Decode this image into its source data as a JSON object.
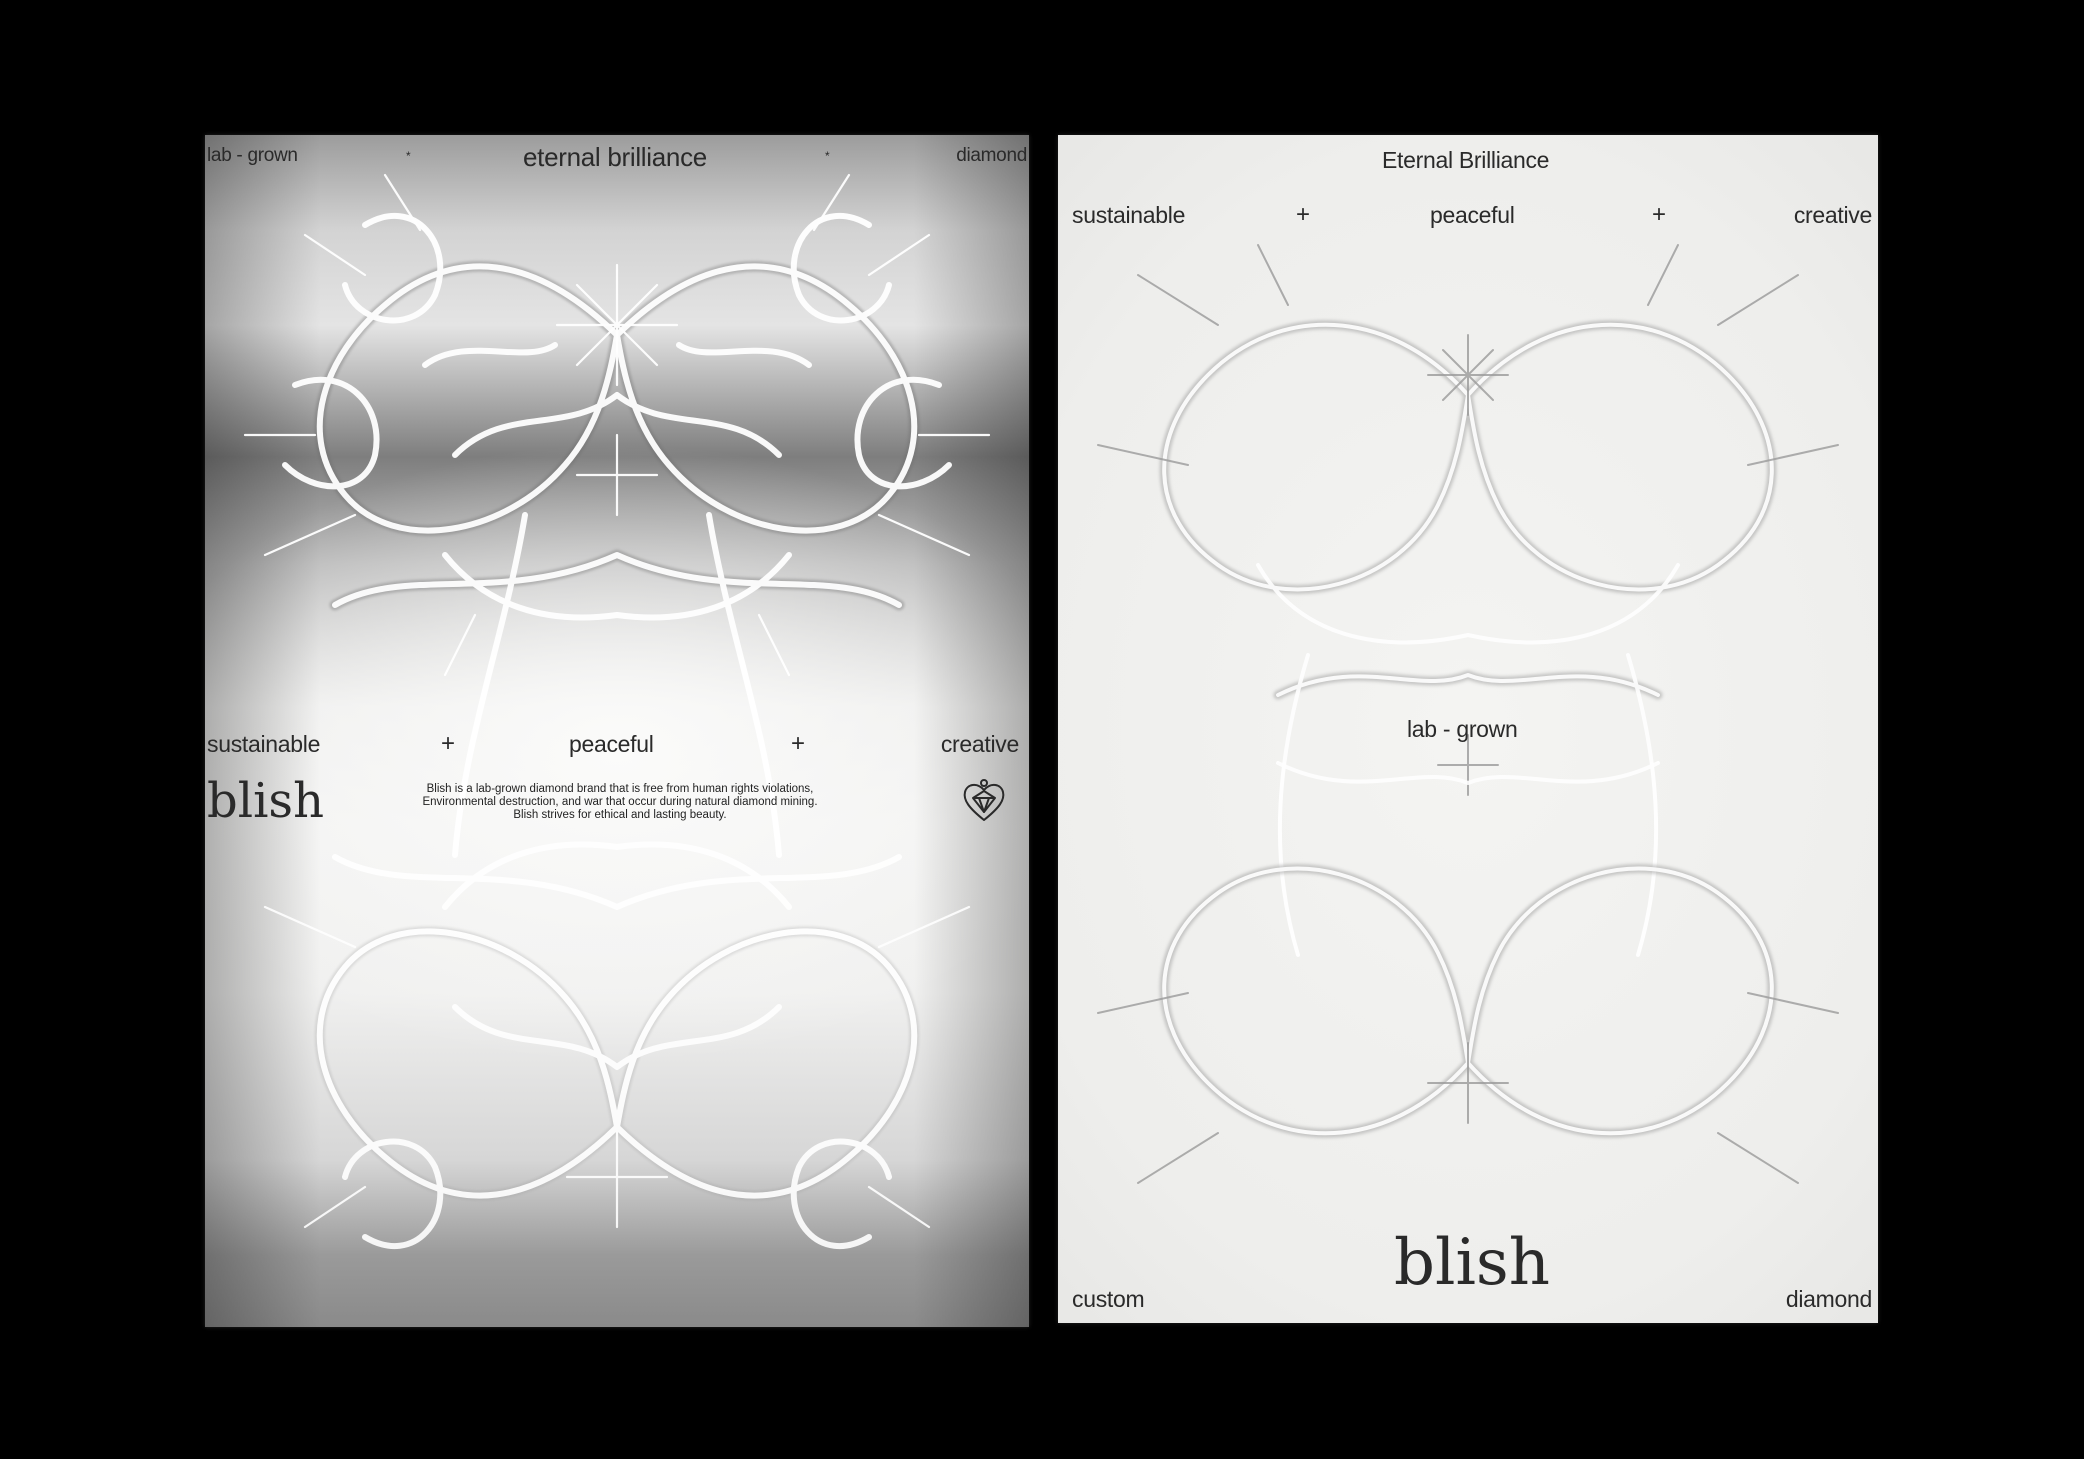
{
  "colors": {
    "background": "#000000",
    "poster_left_tone": "#e9e9e8",
    "poster_right_tone": "#eeeeec",
    "ink": "#2a2a2a",
    "sculpture_stroke": "#ffffff",
    "sculpture_shadow": "#8a8a8a"
  },
  "poster_left": {
    "top_left": "lab - grown",
    "top_center": "eternal brilliance",
    "top_right": "diamond",
    "top_star": "*",
    "mid_left": "sustainable",
    "mid_center": "peaceful",
    "mid_right": "creative",
    "plus": "+",
    "logo": "blish",
    "emblem": "heart-diamond-emblem-icon",
    "description": [
      "Blish is a lab-grown diamond brand that is free from human rights violations,",
      "Environmental destruction, and war that occur during natural diamond mining.",
      "Blish strives for ethical and lasting beauty."
    ]
  },
  "poster_right": {
    "title": "Eternal Brilliance",
    "row_left": "sustainable",
    "row_center": "peaceful",
    "row_right": "creative",
    "plus": "+",
    "center": "lab - grown",
    "logo": "blish",
    "bottom_left": "custom",
    "bottom_right": "diamond"
  }
}
